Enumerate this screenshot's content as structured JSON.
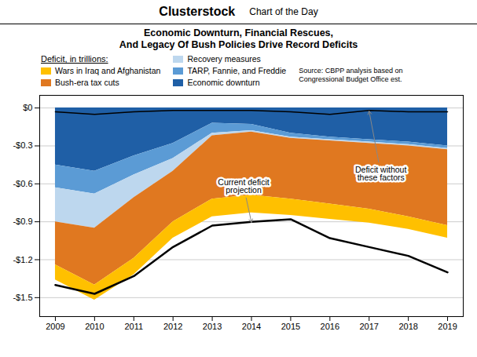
{
  "chart_data": {
    "type": "area",
    "stacked": true,
    "header": [
      "Clusterstock",
      "Chart of the Day"
    ],
    "title": "Economic Downturn, Financial Rescues,\nAnd Legacy Of Bush Policies Drive Record Deficits",
    "legend_title": "Deficit, in trillions:",
    "source": "Source: CBPP analysis based on\nCongressional Budget Office est.",
    "x": [
      2009,
      2010,
      2011,
      2012,
      2013,
      2014,
      2015,
      2016,
      2017,
      2018,
      2019
    ],
    "series": [
      {
        "name": "Economic downturn",
        "color": "#1f5fa6",
        "values": [
          -0.45,
          -0.5,
          -0.38,
          -0.28,
          -0.12,
          -0.13,
          -0.2,
          -0.23,
          -0.25,
          -0.27,
          -0.3
        ]
      },
      {
        "name": "TARP, Fannie, and Freddie",
        "color": "#5b9bd5",
        "values": [
          -0.18,
          -0.18,
          -0.15,
          -0.12,
          -0.08,
          -0.05,
          -0.03,
          -0.02,
          -0.02,
          -0.02,
          -0.02
        ]
      },
      {
        "name": "Recovery measures",
        "color": "#bdd7ee",
        "values": [
          -0.27,
          -0.27,
          -0.18,
          -0.1,
          -0.02,
          -0.01,
          -0.01,
          -0.01,
          -0.01,
          -0.01,
          -0.01
        ]
      },
      {
        "name": "Bush-era tax cuts",
        "color": "#e07820",
        "values": [
          -0.34,
          -0.45,
          -0.48,
          -0.4,
          -0.5,
          -0.5,
          -0.48,
          -0.5,
          -0.52,
          -0.56,
          -0.6
        ]
      },
      {
        "name": "Wars in Iraq and Afghanistan",
        "color": "#ffc000",
        "values": [
          -0.12,
          -0.12,
          -0.13,
          -0.13,
          -0.14,
          -0.14,
          -0.13,
          -0.12,
          -0.11,
          -0.1,
          -0.1
        ]
      },
      {
        "type": "line",
        "color": "black",
        "values": [
          -1.4,
          -1.47,
          -1.33,
          -1.1,
          -0.93,
          -0.9,
          -0.88,
          -1.03,
          -1.1,
          -1.17,
          -1.3
        ]
      },
      {
        "type": "line",
        "color": "black",
        "values": [
          -0.03,
          -0.05,
          -0.03,
          -0.02,
          -0.02,
          -0.02,
          -0.03,
          -0.05,
          -0.02,
          -0.03,
          -0.03
        ]
      }
    ],
    "xlim": [
      2008.6,
      2019.4
    ],
    "xticks": [
      2009,
      2010,
      2011,
      2012,
      2013,
      2014,
      2015,
      2016,
      2017,
      2018,
      2019
    ],
    "ylim": [
      -1.65,
      0.1
    ],
    "yticks": [
      {
        "value": 0,
        "label": "$0"
      },
      {
        "value": -0.3,
        "label": "-$0.3"
      },
      {
        "value": -0.6,
        "label": "-$0.6"
      },
      {
        "value": -0.9,
        "label": "-$0.9"
      },
      {
        "value": -1.2,
        "label": "-$1.2"
      },
      {
        "value": -1.5,
        "label": "-$1.5"
      }
    ],
    "grid": "y",
    "annotations": [
      {
        "text": "Current deficit\nprojection",
        "x": 2014.0,
        "y": -0.905,
        "text_x": 2013.8,
        "text_y": -0.62
      },
      {
        "text": "Deficit without\nthese factors",
        "x": 2017.0,
        "y": -0.025,
        "text_x": 2017.3,
        "text_y": -0.52
      }
    ]
  }
}
